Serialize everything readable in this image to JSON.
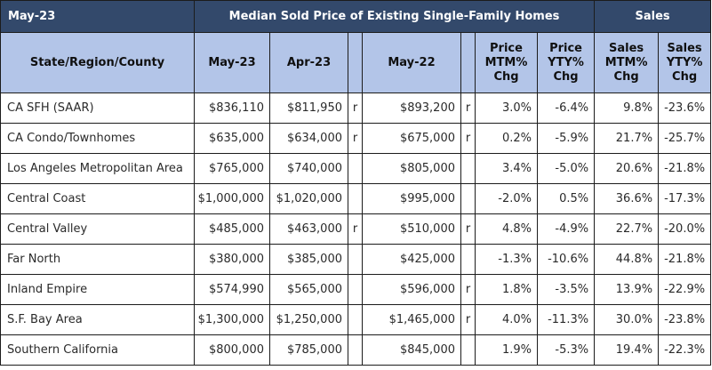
{
  "header": {
    "period": "May-23",
    "median_group": "Median Sold Price of Existing Single-Family Homes",
    "sales_group": "Sales"
  },
  "columns": {
    "region": "State/Region/County",
    "may23": "May-23",
    "apr23": "Apr-23",
    "may22": "May-22",
    "price_mtm": [
      "Price",
      "MTM%",
      "Chg"
    ],
    "price_yty": [
      "Price",
      "YTY%",
      "Chg"
    ],
    "sales_mtm": [
      "Sales",
      "MTM%",
      "Chg"
    ],
    "sales_yty": [
      "Sales",
      "YTY%",
      "Chg"
    ]
  },
  "rows": [
    {
      "region": "CA SFH (SAAR)",
      "may23": "$836,110",
      "apr23": "$811,950",
      "rev1": "r",
      "may22": "$893,200",
      "rev2": "r",
      "price_mtm": "3.0%",
      "price_yty": "-6.4%",
      "sales_mtm": "9.8%",
      "sales_yty": "-23.6%"
    },
    {
      "region": "CA Condo/Townhomes",
      "may23": "$635,000",
      "apr23": "$634,000",
      "rev1": "r",
      "may22": "$675,000",
      "rev2": "r",
      "price_mtm": "0.2%",
      "price_yty": "-5.9%",
      "sales_mtm": "21.7%",
      "sales_yty": "-25.7%"
    },
    {
      "region": "Los Angeles Metropolitan Area",
      "may23": "$765,000",
      "apr23": "$740,000",
      "rev1": "",
      "may22": "$805,000",
      "rev2": "",
      "price_mtm": "3.4%",
      "price_yty": "-5.0%",
      "sales_mtm": "20.6%",
      "sales_yty": "-21.8%"
    },
    {
      "region": "Central Coast",
      "may23": "$1,000,000",
      "apr23": "$1,020,000",
      "rev1": "",
      "may22": "$995,000",
      "rev2": "",
      "price_mtm": "-2.0%",
      "price_yty": "0.5%",
      "sales_mtm": "36.6%",
      "sales_yty": "-17.3%"
    },
    {
      "region": "Central Valley",
      "may23": "$485,000",
      "apr23": "$463,000",
      "rev1": "r",
      "may22": "$510,000",
      "rev2": "r",
      "price_mtm": "4.8%",
      "price_yty": "-4.9%",
      "sales_mtm": "22.7%",
      "sales_yty": "-20.0%"
    },
    {
      "region": "Far North",
      "may23": "$380,000",
      "apr23": "$385,000",
      "rev1": "",
      "may22": "$425,000",
      "rev2": "",
      "price_mtm": "-1.3%",
      "price_yty": "-10.6%",
      "sales_mtm": "44.8%",
      "sales_yty": "-21.8%"
    },
    {
      "region": "Inland Empire",
      "may23": "$574,990",
      "apr23": "$565,000",
      "rev1": "",
      "may22": "$596,000",
      "rev2": "r",
      "price_mtm": "1.8%",
      "price_yty": "-3.5%",
      "sales_mtm": "13.9%",
      "sales_yty": "-22.9%"
    },
    {
      "region": "S.F. Bay Area",
      "may23": "$1,300,000",
      "apr23": "$1,250,000",
      "rev1": "",
      "may22": "$1,465,000",
      "rev2": "r",
      "price_mtm": "4.0%",
      "price_yty": "-11.3%",
      "sales_mtm": "30.0%",
      "sales_yty": "-23.8%"
    },
    {
      "region": "Southern California",
      "may23": "$800,000",
      "apr23": "$785,000",
      "rev1": "",
      "may22": "$845,000",
      "rev2": "",
      "price_mtm": "1.9%",
      "price_yty": "-5.3%",
      "sales_mtm": "19.4%",
      "sales_yty": "-22.3%"
    }
  ]
}
